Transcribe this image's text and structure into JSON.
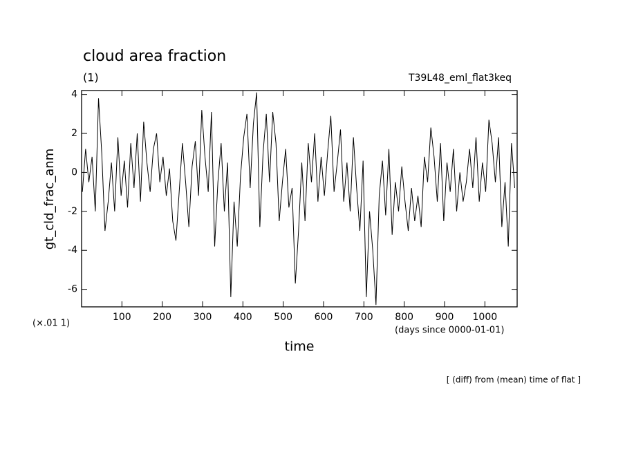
{
  "chart_data": {
    "type": "line",
    "title": "cloud area fraction",
    "unit_label": "(1)",
    "experiment": "T39L48_eml_flat3keq",
    "y_label": "gt_cld_frac_anm",
    "x_label": "time",
    "y_scale_label": "(×.01 1)",
    "x_unit": "(days since 0000-01-01)",
    "note": "[ (diff) from (mean) time of flat ]",
    "xlim": [
      0,
      1080
    ],
    "ylim": [
      -6.9,
      4.2
    ],
    "xticks": [
      100,
      200,
      300,
      400,
      500,
      600,
      700,
      800,
      900,
      1000
    ],
    "yticks": [
      -6,
      -4,
      -2,
      0,
      2,
      4
    ],
    "x": [
      2,
      10,
      18,
      26,
      34,
      42,
      50,
      58,
      66,
      74,
      82,
      90,
      98,
      106,
      114,
      122,
      130,
      138,
      146,
      154,
      162,
      170,
      178,
      186,
      194,
      202,
      210,
      218,
      226,
      234,
      242,
      250,
      258,
      266,
      274,
      282,
      290,
      298,
      306,
      314,
      322,
      330,
      338,
      346,
      354,
      362,
      370,
      378,
      386,
      394,
      402,
      410,
      418,
      426,
      434,
      442,
      450,
      458,
      466,
      474,
      482,
      490,
      498,
      506,
      514,
      522,
      530,
      538,
      546,
      554,
      562,
      570,
      578,
      586,
      594,
      602,
      610,
      618,
      626,
      634,
      642,
      650,
      658,
      666,
      674,
      682,
      690,
      698,
      706,
      714,
      722,
      730,
      738,
      746,
      754,
      762,
      770,
      778,
      786,
      794,
      802,
      810,
      818,
      826,
      834,
      842,
      850,
      858,
      866,
      874,
      882,
      890,
      898,
      906,
      914,
      922,
      930,
      938,
      946,
      954,
      962,
      970,
      978,
      986,
      994,
      1002,
      1010,
      1018,
      1026,
      1034,
      1042,
      1050,
      1058,
      1066,
      1074
    ],
    "series": [
      {
        "color": "#000000",
        "values": [
          -1.0,
          1.2,
          -0.5,
          0.8,
          -2.0,
          3.8,
          1.0,
          -3.0,
          -1.5,
          0.5,
          -2.0,
          1.8,
          -1.2,
          0.6,
          -1.8,
          1.5,
          -0.8,
          2.0,
          -1.5,
          2.6,
          0.5,
          -1.0,
          1.2,
          2.0,
          -0.5,
          0.8,
          -1.2,
          0.2,
          -2.5,
          -3.5,
          -1.0,
          1.5,
          -0.5,
          -2.8,
          0.3,
          1.6,
          -1.2,
          3.2,
          0.8,
          -1.0,
          3.1,
          -3.8,
          -0.5,
          1.5,
          -2.0,
          0.5,
          -6.4,
          -1.5,
          -3.8,
          -0.2,
          1.8,
          3.0,
          -0.8,
          2.5,
          4.1,
          -2.8,
          1.0,
          3.0,
          -0.5,
          3.1,
          1.5,
          -2.5,
          -0.5,
          1.2,
          -1.8,
          -0.8,
          -5.7,
          -3.0,
          0.5,
          -2.5,
          1.5,
          -0.5,
          2.0,
          -1.5,
          0.8,
          -1.2,
          1.0,
          2.9,
          -1.0,
          0.5,
          2.2,
          -1.5,
          0.5,
          -2.0,
          1.8,
          -0.8,
          -3.0,
          0.6,
          -6.4,
          -2.0,
          -4.0,
          -6.8,
          -1.2,
          0.6,
          -2.2,
          1.2,
          -3.2,
          -0.5,
          -2.0,
          0.3,
          -1.5,
          -3.0,
          -0.8,
          -2.5,
          -1.2,
          -2.8,
          0.8,
          -0.5,
          2.3,
          0.8,
          -1.5,
          1.5,
          -2.5,
          0.5,
          -1.0,
          1.2,
          -2.0,
          0.0,
          -1.5,
          -0.5,
          1.2,
          -0.8,
          1.8,
          -1.5,
          0.5,
          -1.0,
          2.7,
          1.5,
          -0.5,
          1.8,
          -2.8,
          -0.5,
          -3.8,
          1.5,
          -0.8
        ]
      }
    ]
  }
}
